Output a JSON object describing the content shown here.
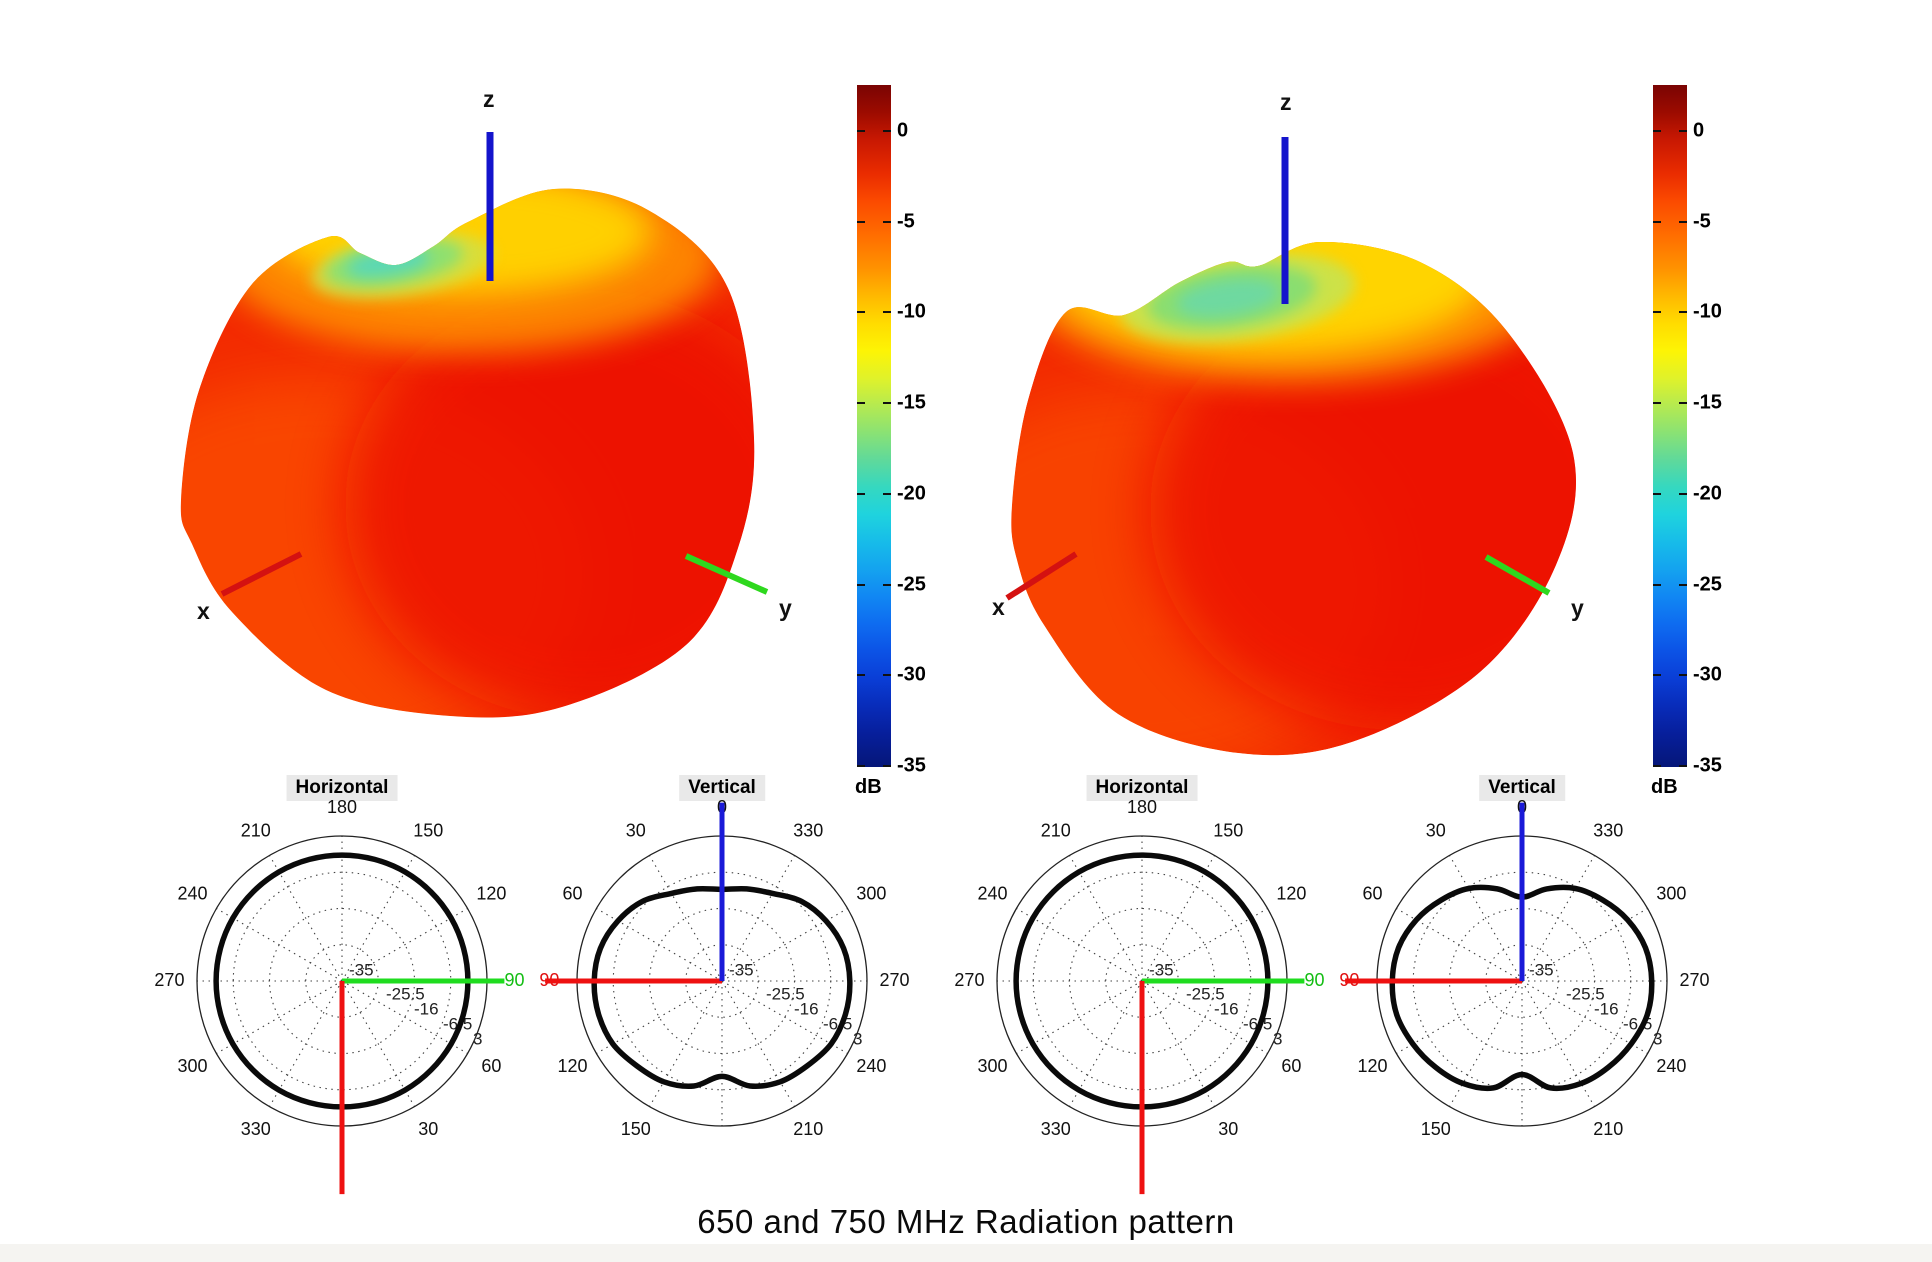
{
  "caption": "650 and 750 MHz Radiation pattern",
  "axes3d": {
    "x": "x",
    "y": "y",
    "z": "z"
  },
  "colorbar": {
    "unit": "dB",
    "ticks": [
      "0",
      "-5",
      "-10",
      "-15",
      "-20",
      "-25",
      "-30",
      "-35"
    ]
  },
  "chart_data": [
    {
      "type": "polar",
      "title": "Horizontal",
      "frequency_mhz": 650,
      "orientation": "horizontal",
      "angle_zero": "bottom",
      "angle_direction": "ccw",
      "angle_step_deg": 15,
      "r_axis_db": [
        -35,
        3
      ],
      "ring_labels": [
        "-35",
        "-25.5",
        "-16",
        "-6.5",
        "3"
      ],
      "angle_labels": [
        30,
        60,
        90,
        120,
        150,
        180,
        210,
        240,
        270,
        300,
        330
      ],
      "label_highlight": {
        "90": "#13bd13"
      },
      "overlay_axes": [
        {
          "name": "y-axis",
          "color": "#1fdc1f",
          "to_deg": 90,
          "length_r": 1.12
        },
        {
          "name": "x-axis",
          "color": "#ee1111",
          "to_deg": 0,
          "length_r": 1.47
        }
      ],
      "r_db": [
        -2,
        -2,
        -2,
        -2,
        -2,
        -2,
        -2,
        -2,
        -2,
        -2,
        -2,
        -2,
        -2,
        -2,
        -2,
        -2,
        -2,
        -2,
        -2,
        -2,
        -2,
        -2,
        -2,
        -2
      ]
    },
    {
      "type": "polar",
      "title": "Vertical",
      "frequency_mhz": 650,
      "orientation": "vertical",
      "angle_zero": "top",
      "angle_direction": "ccw",
      "angle_step_deg": 15,
      "r_axis_db": [
        -35,
        3
      ],
      "ring_labels": [
        "-35",
        "-25.5",
        "-16",
        "-6.5",
        "3"
      ],
      "angle_labels": [
        0,
        30,
        60,
        90,
        120,
        150,
        210,
        240,
        270,
        300,
        330
      ],
      "label_highlight": {
        "90": "#e01010"
      },
      "overlay_axes": [
        {
          "name": "x-axis",
          "color": "#ee1111",
          "to_deg": 90,
          "length_r": 1.22
        },
        {
          "name": "z-axis",
          "color": "#1a1ad8",
          "to_deg": 0,
          "length_r": 1.23
        }
      ],
      "r_db": [
        -11,
        -10,
        -8.5,
        -5.5,
        -3.5,
        -2,
        -1.5,
        -1.5,
        -2,
        -3.5,
        -4.5,
        -6.5,
        -10,
        -6.5,
        -4.5,
        -3.5,
        -2,
        -1.5,
        -1.5,
        -2,
        -3.5,
        -5.5,
        -8.5,
        -10
      ]
    },
    {
      "type": "polar",
      "title": "Horizontal",
      "frequency_mhz": 750,
      "orientation": "horizontal",
      "angle_zero": "bottom",
      "angle_direction": "ccw",
      "angle_step_deg": 15,
      "r_axis_db": [
        -35,
        3
      ],
      "ring_labels": [
        "-35",
        "-25.5",
        "-16",
        "-6.5",
        "3"
      ],
      "angle_labels": [
        30,
        60,
        90,
        120,
        150,
        180,
        210,
        240,
        270,
        300,
        330
      ],
      "label_highlight": {
        "90": "#13bd13"
      },
      "overlay_axes": [
        {
          "name": "y-axis",
          "color": "#1fdc1f",
          "to_deg": 90,
          "length_r": 1.12
        },
        {
          "name": "x-axis",
          "color": "#ee1111",
          "to_deg": 0,
          "length_r": 1.47
        }
      ],
      "r_db": [
        -2,
        -2,
        -2,
        -2,
        -2,
        -2,
        -2,
        -2,
        -2,
        -2,
        -2,
        -2,
        -2,
        -2,
        -2,
        -2,
        -2,
        -2,
        -2,
        -2,
        -2,
        -2,
        -2,
        -2
      ]
    },
    {
      "type": "polar",
      "title": "Vertical",
      "frequency_mhz": 750,
      "orientation": "vertical",
      "angle_zero": "top",
      "angle_direction": "ccw",
      "angle_step_deg": 15,
      "r_axis_db": [
        -35,
        3
      ],
      "ring_labels": [
        "-35",
        "-25.5",
        "-16",
        "-6.5",
        "3"
      ],
      "angle_labels": [
        0,
        30,
        60,
        90,
        120,
        150,
        210,
        240,
        270,
        300,
        330
      ],
      "label_highlight": {
        "90": "#e01010"
      },
      "overlay_axes": [
        {
          "name": "x-axis",
          "color": "#ee1111",
          "to_deg": 90,
          "length_r": 1.22
        },
        {
          "name": "z-axis",
          "color": "#1a1ad8",
          "to_deg": 0,
          "length_r": 1.23
        }
      ],
      "r_db": [
        -13,
        -10,
        -7,
        -5,
        -3,
        -1.5,
        -1,
        -1,
        -2,
        -3,
        -4,
        -6,
        -10.5,
        -6,
        -4,
        -3,
        -2,
        -1,
        -1,
        -1.5,
        -3,
        -5,
        -7,
        -10
      ]
    }
  ]
}
